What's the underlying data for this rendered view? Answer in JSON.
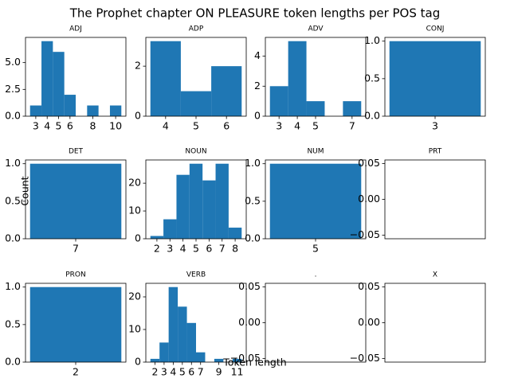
{
  "title": "The Prophet chapter ON PLEASURE token lengths per POS tag",
  "x_label": "Token length",
  "y_label": "Count",
  "chart_data": [
    {
      "type": "histogram",
      "title": "ADJ",
      "color": "#1f77b4",
      "bins": [
        2.5,
        3.5,
        4.5,
        5.5,
        6.5,
        7.5,
        8.5,
        9.5,
        10.5
      ],
      "values": [
        1,
        7,
        6,
        2,
        0,
        1,
        0,
        1
      ],
      "xlim": [
        2.1,
        10.9
      ],
      "ylim": [
        0,
        7.35
      ],
      "xticks": [
        3,
        4,
        5,
        6,
        8,
        10
      ],
      "yticks": [
        {
          "value": 0,
          "label": "0.0"
        },
        {
          "value": 2.5,
          "label": "2.5"
        },
        {
          "value": 5,
          "label": "5.0"
        }
      ]
    },
    {
      "type": "histogram",
      "title": "ADP",
      "color": "#1f77b4",
      "bins": [
        3.5,
        4.5,
        5.5,
        6.5
      ],
      "values": [
        3,
        1,
        2
      ],
      "xlim": [
        3.35,
        6.65
      ],
      "ylim": [
        0,
        3.15
      ],
      "xticks": [
        4,
        5,
        6
      ],
      "yticks": [
        0,
        2
      ]
    },
    {
      "type": "histogram",
      "title": "ADV",
      "color": "#1f77b4",
      "bins": [
        2.5,
        3.5,
        4.5,
        5.5,
        6.5,
        7.5
      ],
      "values": [
        2,
        5,
        1,
        0,
        1
      ],
      "xlim": [
        2.25,
        7.75
      ],
      "ylim": [
        0,
        5.25
      ],
      "xticks": [
        3,
        4,
        5,
        7
      ],
      "yticks": [
        0,
        2,
        4
      ]
    },
    {
      "type": "histogram",
      "title": "CONJ",
      "color": "#1f77b4",
      "bins": [
        2.5,
        3.5
      ],
      "values": [
        1
      ],
      "xlim": [
        2.45,
        3.55
      ],
      "ylim": [
        0,
        1.05
      ],
      "xticks": [
        3
      ],
      "yticks": [
        {
          "value": 0,
          "label": "0.0"
        },
        {
          "value": 0.5,
          "label": "0.5"
        },
        {
          "value": 1,
          "label": "1.0"
        }
      ]
    },
    {
      "type": "histogram",
      "title": "DET",
      "color": "#1f77b4",
      "bins": [
        6.5,
        7.5
      ],
      "values": [
        1
      ],
      "xlim": [
        6.45,
        7.55
      ],
      "ylim": [
        0,
        1.05
      ],
      "xticks": [
        7
      ],
      "yticks": [
        {
          "value": 0,
          "label": "0.0"
        },
        {
          "value": 0.5,
          "label": "0.5"
        },
        {
          "value": 1,
          "label": "1.0"
        }
      ]
    },
    {
      "type": "histogram",
      "title": "NOUN",
      "color": "#1f77b4",
      "bins": [
        1.5,
        2.5,
        3.5,
        4.5,
        5.5,
        6.5,
        7.5,
        8.5
      ],
      "values": [
        1,
        7,
        23,
        27,
        21,
        27,
        4
      ],
      "xlim": [
        1.15,
        8.85
      ],
      "ylim": [
        0,
        28.35
      ],
      "xticks": [
        2,
        3,
        4,
        5,
        6,
        7,
        8
      ],
      "yticks": [
        0,
        10,
        20
      ]
    },
    {
      "type": "histogram",
      "title": "NUM",
      "color": "#1f77b4",
      "bins": [
        4.5,
        5.5
      ],
      "values": [
        1
      ],
      "xlim": [
        4.45,
        5.55
      ],
      "ylim": [
        0,
        1.05
      ],
      "xticks": [
        5
      ],
      "yticks": [
        {
          "value": 0,
          "label": "0.0"
        },
        {
          "value": 0.5,
          "label": "0.5"
        },
        {
          "value": 1,
          "label": "1.0"
        }
      ]
    },
    {
      "type": "histogram",
      "title": "PRT",
      "color": "#1f77b4",
      "bins": [],
      "values": [],
      "xlim": [
        0,
        1
      ],
      "ylim": [
        -0.055,
        0.055
      ],
      "xticks": [],
      "yticks": [
        {
          "value": -0.05,
          "label": "−0.05"
        },
        {
          "value": 0,
          "label": "0.00"
        },
        {
          "value": 0.05,
          "label": "0.05"
        }
      ]
    },
    {
      "type": "histogram",
      "title": "PRON",
      "color": "#1f77b4",
      "bins": [
        1.5,
        2.5
      ],
      "values": [
        1
      ],
      "xlim": [
        1.45,
        2.55
      ],
      "ylim": [
        0,
        1.05
      ],
      "xticks": [
        2
      ],
      "yticks": [
        {
          "value": 0,
          "label": "0.0"
        },
        {
          "value": 0.5,
          "label": "0.5"
        },
        {
          "value": 1,
          "label": "1.0"
        }
      ]
    },
    {
      "type": "histogram",
      "title": "VERB",
      "color": "#1f77b4",
      "bins": [
        1.5,
        2.5,
        3.5,
        4.5,
        5.5,
        6.5,
        7.5,
        8.5,
        9.5,
        10.5,
        11.5
      ],
      "values": [
        1,
        6,
        23,
        17,
        12,
        3,
        0,
        1,
        0,
        1
      ],
      "xlim": [
        1,
        12
      ],
      "ylim": [
        0,
        24.15
      ],
      "xticks": [
        2,
        3,
        4,
        5,
        6,
        7,
        9,
        11
      ],
      "yticks": [
        0,
        10,
        20
      ]
    },
    {
      "type": "histogram",
      "title": ".",
      "color": "#1f77b4",
      "bins": [],
      "values": [],
      "xlim": [
        0,
        1
      ],
      "ylim": [
        -0.055,
        0.055
      ],
      "xticks": [],
      "yticks": [
        {
          "value": -0.05,
          "label": "−0.05"
        },
        {
          "value": 0,
          "label": "0.00"
        },
        {
          "value": 0.05,
          "label": "0.05"
        }
      ]
    },
    {
      "type": "histogram",
      "title": "X",
      "color": "#1f77b4",
      "bins": [],
      "values": [],
      "xlim": [
        0,
        1
      ],
      "ylim": [
        -0.055,
        0.055
      ],
      "xticks": [],
      "yticks": [
        {
          "value": -0.05,
          "label": "−0.05"
        },
        {
          "value": 0,
          "label": "0.00"
        },
        {
          "value": 0.05,
          "label": "0.05"
        }
      ]
    }
  ]
}
